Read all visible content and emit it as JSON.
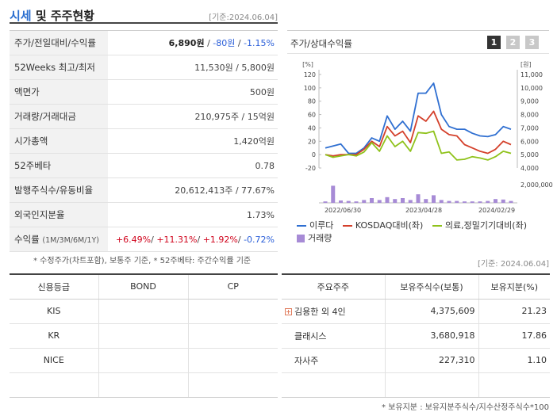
{
  "header": {
    "title_accent": "시세",
    "title_rest": " 및 주주현황",
    "ref_date": "[기준:2024.06.04]"
  },
  "info": {
    "price_label": "주가/전일대비/수익률",
    "price": "6,890원",
    "change": "-80원",
    "change_pct": "-1.15%",
    "week52_label": "52Weeks 최고/최저",
    "week52": "11,530원 / 5,800원",
    "par_label": "액면가",
    "par": "500원",
    "volume_label": "거래량/거래대금",
    "volume": "210,975주 / 15억원",
    "mcap_label": "시가총액",
    "mcap": "1,420억원",
    "beta_label": "52주베타",
    "beta": "0.78",
    "shares_label": "발행주식수/유동비율",
    "shares": "20,612,413주 / 77.67%",
    "foreign_label": "외국인지분율",
    "foreign": "1.73%",
    "return_label": "수익률",
    "return_sub": "(1M/3M/6M/1Y)",
    "r1": "+6.49%",
    "r2": "+11.31%",
    "r3": "+1.92%",
    "r4": "-0.72%",
    "sep": "/ "
  },
  "note_left": "* 수정주가(차트포함), 보통주 기준, * 52주베타: 주간수익률 기준",
  "chart_panel": {
    "title": "주가/상대수익률",
    "pages": [
      "1",
      "2",
      "3"
    ],
    "active_page": 0,
    "legend": {
      "s1": "이루다",
      "s2": "KOSDAQ대비(좌)",
      "s3": "의료,정밀기기대비(좌)",
      "vol": "거래량"
    }
  },
  "chart_data": {
    "type": "line",
    "y_left_unit": "[%]",
    "y_right_unit": "[원]",
    "y_left_ticks": [
      "120",
      "100",
      "80",
      "60",
      "40",
      "20",
      "0",
      "-20"
    ],
    "y_right_ticks": [
      "11,000",
      "10,000",
      "9,000",
      "8,000",
      "7,000",
      "6,000",
      "5,000",
      "4,000"
    ],
    "vol_tick": "2,000,000",
    "x_ticks": [
      "2022/06/30",
      "2023/04/28",
      "2024/02/29"
    ],
    "ylim_left": [
      -20,
      120
    ],
    "colors": {
      "s1": "#2f6fd1",
      "s2": "#d4402b",
      "s3": "#8fc21b",
      "vol": "#a78bd6"
    },
    "series": [
      {
        "key": "s1",
        "values": [
          10,
          13,
          16,
          2,
          2,
          10,
          25,
          20,
          58,
          38,
          50,
          35,
          92,
          92,
          107,
          60,
          42,
          38,
          38,
          32,
          28,
          27,
          30,
          42,
          38
        ]
      },
      {
        "key": "s2",
        "values": [
          0,
          -2,
          0,
          0,
          0,
          8,
          20,
          12,
          42,
          28,
          35,
          18,
          58,
          50,
          65,
          38,
          30,
          28,
          15,
          10,
          5,
          2,
          8,
          20,
          15
        ]
      },
      {
        "key": "s3",
        "values": [
          0,
          -4,
          -2,
          0,
          -2,
          4,
          18,
          5,
          28,
          12,
          20,
          5,
          33,
          32,
          35,
          2,
          4,
          -8,
          -7,
          -3,
          -5,
          -8,
          -3,
          5,
          2
        ]
      }
    ],
    "volume": [
      0.15,
      1.8,
      0.25,
      0.2,
      0.15,
      0.3,
      0.5,
      0.3,
      0.6,
      0.4,
      0.5,
      0.3,
      0.9,
      0.4,
      0.8,
      0.3,
      0.2,
      0.2,
      0.15,
      0.15,
      0.15,
      0.2,
      0.4,
      0.35,
      0.2
    ],
    "vol_max": 2
  },
  "right_ref_date": "[기준: 2024.06.04]",
  "credit": {
    "headers": [
      "신용등급",
      "BOND",
      "CP"
    ],
    "rows": [
      [
        "KIS",
        "",
        ""
      ],
      [
        "KR",
        "",
        ""
      ],
      [
        "NICE",
        "",
        ""
      ],
      [
        "",
        "",
        ""
      ]
    ]
  },
  "holders": {
    "headers": [
      "주요주주",
      "보유주식수(보통)",
      "보유지분(%)"
    ],
    "rows": [
      {
        "name": "김용한 외 4인",
        "shares": "4,375,609",
        "pct": "21.23",
        "expand": true
      },
      {
        "name": "클래시스",
        "shares": "3,680,918",
        "pct": "17.86",
        "expand": false
      },
      {
        "name": "자사주",
        "shares": "227,310",
        "pct": "1.10",
        "expand": false
      },
      {
        "name": "",
        "shares": "",
        "pct": "",
        "expand": false
      }
    ]
  },
  "note_right": "* 보유지분 : 보유지분주식수/지수산정주식수*100"
}
